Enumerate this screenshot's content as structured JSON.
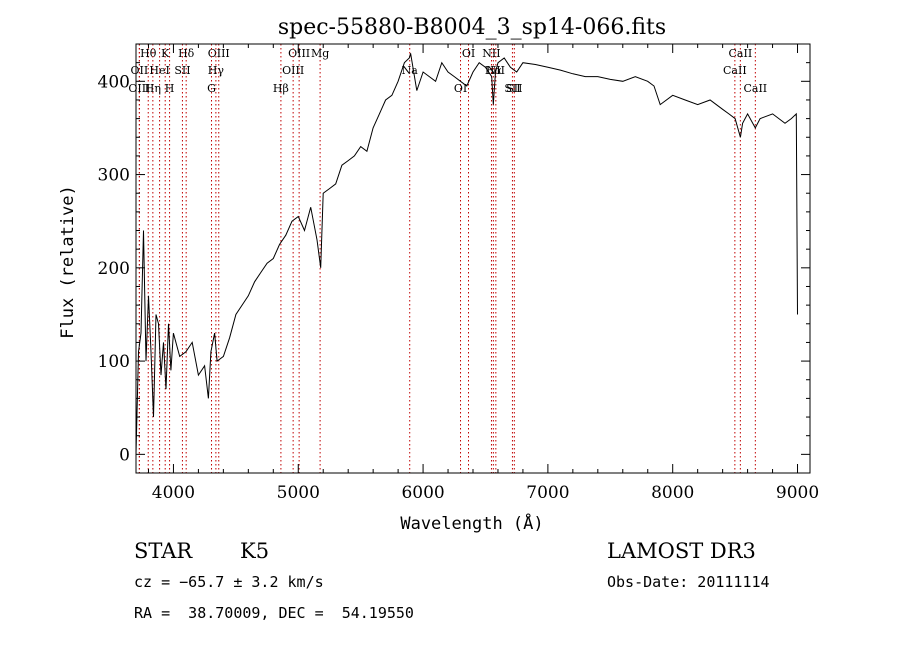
{
  "chart_data": {
    "type": "line",
    "title": "spec-55880-B8004_3_sp14-066.fits",
    "xlabel": "Wavelength (Å)",
    "ylabel": "Flux (relative)",
    "xlim": [
      3700,
      9100
    ],
    "ylim": [
      -20,
      440
    ],
    "xticks": [
      4000,
      5000,
      6000,
      7000,
      8000,
      9000
    ],
    "yticks": [
      0,
      100,
      200,
      300,
      400
    ],
    "grid": false,
    "series": [
      {
        "x": [
          3700,
          3720,
          3740,
          3760,
          3780,
          3800,
          3820,
          3840,
          3860,
          3880,
          3900,
          3920,
          3940,
          3960,
          3980,
          4000,
          4050,
          4100,
          4150,
          4200,
          4250,
          4280,
          4300,
          4330,
          4350,
          4400,
          4450,
          4500,
          4550,
          4600,
          4650,
          4700,
          4750,
          4800,
          4850,
          4900,
          4950,
          5000,
          5050,
          5100,
          5150,
          5180,
          5200,
          5250,
          5300,
          5350,
          5400,
          5450,
          5500,
          5550,
          5600,
          5650,
          5700,
          5750,
          5800,
          5850,
          5890,
          5900,
          5950,
          6000,
          6050,
          6100,
          6150,
          6200,
          6250,
          6300,
          6350,
          6400,
          6450,
          6500,
          6550,
          6563,
          6580,
          6600,
          6650,
          6700,
          6750,
          6800,
          6900,
          7000,
          7100,
          7200,
          7300,
          7400,
          7500,
          7600,
          7700,
          7800,
          7850,
          7900,
          8000,
          8100,
          8200,
          8300,
          8400,
          8450,
          8500,
          8542,
          8560,
          8600,
          8662,
          8700,
          8800,
          8900,
          8950,
          8990,
          9000
        ],
        "y": [
          0,
          110,
          130,
          240,
          100,
          170,
          110,
          40,
          150,
          140,
          85,
          120,
          70,
          140,
          90,
          130,
          105,
          110,
          120,
          85,
          95,
          60,
          110,
          130,
          100,
          105,
          125,
          150,
          160,
          170,
          185,
          195,
          205,
          210,
          225,
          235,
          250,
          255,
          240,
          265,
          230,
          200,
          280,
          285,
          290,
          310,
          315,
          320,
          330,
          325,
          350,
          365,
          380,
          385,
          400,
          420,
          425,
          430,
          390,
          410,
          405,
          400,
          420,
          410,
          405,
          400,
          395,
          410,
          420,
          415,
          405,
          375,
          410,
          420,
          425,
          415,
          410,
          420,
          418,
          415,
          412,
          408,
          405,
          405,
          402,
          400,
          405,
          400,
          395,
          375,
          385,
          380,
          375,
          380,
          370,
          365,
          360,
          340,
          355,
          365,
          350,
          360,
          365,
          355,
          360,
          365,
          150
        ]
      }
    ],
    "lines": [
      {
        "label": "Hθ",
        "x": 3798
      },
      {
        "label": "OII",
        "x": 3727
      },
      {
        "label": "OIII",
        "x": 3727
      },
      {
        "label": "K",
        "x": 3934
      },
      {
        "label": "HeI",
        "x": 3889
      },
      {
        "label": "Hη",
        "x": 3835
      },
      {
        "label": "Hδ",
        "x": 4102
      },
      {
        "label": "SII",
        "x": 4072
      },
      {
        "label": "H",
        "x": 3969
      },
      {
        "label": "OIII",
        "x": 4363
      },
      {
        "label": "Hγ",
        "x": 4340
      },
      {
        "label": "G",
        "x": 4305
      },
      {
        "label": "OIII",
        "x": 5007
      },
      {
        "label": "OIII",
        "x": 4959
      },
      {
        "label": "Hβ",
        "x": 4861
      },
      {
        "label": "Mg",
        "x": 5175
      },
      {
        "label": "Na",
        "x": 5893
      },
      {
        "label": "OI",
        "x": 6300
      },
      {
        "label": "OI",
        "x": 6364
      },
      {
        "label": "Hα",
        "x": 6563
      },
      {
        "label": "SII",
        "x": 6716
      },
      {
        "label": "NII",
        "x": 6548
      },
      {
        "label": "NII",
        "x": 6583
      },
      {
        "label": "SII",
        "x": 6731
      },
      {
        "label": "CaII",
        "x": 8542
      },
      {
        "label": "CaII",
        "x": 8498
      },
      {
        "label": "CaII",
        "x": 8662
      }
    ]
  },
  "info": {
    "object_class": "STAR",
    "subclass": "K5",
    "survey": "LAMOST DR3",
    "cz": "cz = −65.7 ± 3.2 km/s",
    "obs_date": "Obs-Date: 20111114",
    "radec": "RA =  38.70009, DEC =  54.19550"
  }
}
